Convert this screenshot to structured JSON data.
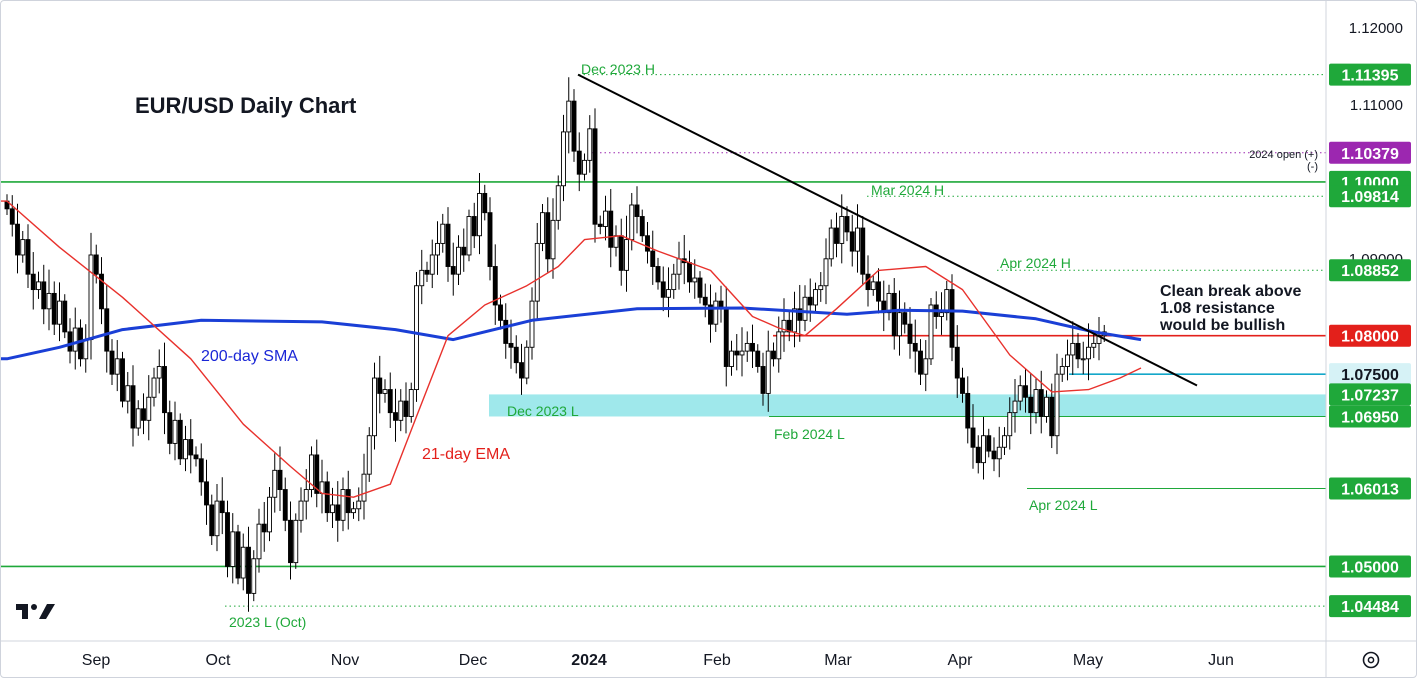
{
  "chart_data": {
    "type": "candlestick",
    "title": "EUR/USD Daily Chart",
    "ylim": [
      1.042,
      1.123
    ],
    "y_ticks": [
      "1.12000",
      "1.11000",
      "1.09000"
    ],
    "x_ticks": [
      "Sep",
      "Oct",
      "Nov",
      "Dec",
      "2024",
      "Feb",
      "Mar",
      "Apr",
      "May",
      "Jun"
    ],
    "colors": {
      "up": "#ffffff",
      "down": "#000000",
      "sma": "#1a3fd6",
      "ema": "#e8312c",
      "level_green": "#1fa83a",
      "level_red": "#e3201b",
      "level_cyan": "#14a7c9",
      "zone": "#7fe0e4",
      "purple": "#9c27b0"
    },
    "candles": {
      "start_open": 1.0975,
      "closes": [
        1.0965,
        1.0945,
        1.0905,
        1.0925,
        1.088,
        1.086,
        1.087,
        1.0835,
        1.0855,
        1.0815,
        1.0845,
        1.0805,
        1.078,
        1.081,
        1.077,
        1.0795,
        1.0905,
        1.088,
        1.0835,
        1.078,
        1.075,
        1.077,
        1.0715,
        1.0735,
        1.068,
        1.0705,
        1.069,
        1.072,
        1.0745,
        1.076,
        1.07,
        1.066,
        1.069,
        1.064,
        1.0665,
        1.0645,
        1.064,
        1.061,
        1.058,
        1.054,
        1.0585,
        1.057,
        1.05,
        1.0545,
        1.0485,
        1.0525,
        1.0465,
        1.051,
        1.0555,
        1.0545,
        1.059,
        1.0625,
        1.06,
        1.056,
        1.0505,
        1.056,
        1.0585,
        1.06,
        1.0645,
        1.0595,
        1.061,
        1.057,
        1.058,
        1.056,
        1.06,
        1.057,
        1.0575,
        1.0585,
        1.062,
        1.067,
        1.0745,
        1.0725,
        1.073,
        1.07,
        1.069,
        1.0715,
        1.0695,
        1.073,
        1.0865,
        1.0885,
        1.088,
        1.0905,
        1.092,
        1.0945,
        1.089,
        1.088,
        1.0915,
        1.0905,
        1.0955,
        1.093,
        1.0985,
        1.096,
        1.089,
        1.084,
        1.082,
        1.079,
        1.0785,
        1.0765,
        1.0745,
        1.0785,
        1.0845,
        1.092,
        1.096,
        1.09,
        1.095,
        1.0995,
        1.1065,
        1.1105,
        1.104,
        1.101,
        1.1028,
        1.1069,
        1.0945,
        1.0942,
        1.0962,
        1.0915,
        1.093,
        1.0885,
        1.0925,
        1.097,
        1.0955,
        1.093,
        1.091,
        1.089,
        1.087,
        1.085,
        1.086,
        1.088,
        1.09,
        1.0895,
        1.087,
        1.0875,
        1.085,
        1.084,
        1.0815,
        1.0845,
        1.0835,
        1.076,
        1.078,
        1.0775,
        1.078,
        1.079,
        1.078,
        1.076,
        1.0725,
        1.078,
        1.077,
        1.0805,
        1.082,
        1.0805,
        1.0835,
        1.082,
        1.085,
        1.084,
        1.086,
        1.0865,
        1.09,
        1.094,
        1.092,
        1.0955,
        1.0935,
        1.091,
        1.094,
        1.088,
        1.086,
        1.087,
        1.0845,
        1.083,
        1.0855,
        1.08,
        1.083,
        1.0815,
        1.079,
        1.078,
        1.075,
        1.077,
        1.084,
        1.0825,
        1.083,
        1.086,
        1.0785,
        1.0745,
        1.0725,
        1.068,
        1.0655,
        1.0635,
        1.067,
        1.065,
        1.064,
        1.0655,
        1.067,
        1.07,
        1.0715,
        1.0735,
        1.072,
        1.07,
        1.073,
        1.0695,
        1.072,
        1.067,
        1.075,
        1.076,
        1.0775,
        1.079,
        1.077,
        1.077,
        1.0785,
        1.079,
        1.08,
        1.0805
      ]
    },
    "series": [
      {
        "name": "200-day SMA",
        "points": [
          [
            0,
            1.077
          ],
          [
            10,
            1.0785
          ],
          [
            22,
            1.0808
          ],
          [
            37,
            1.082
          ],
          [
            60,
            1.0818
          ],
          [
            74,
            1.0808
          ],
          [
            85,
            1.0795
          ],
          [
            100,
            1.082
          ],
          [
            120,
            1.0835
          ],
          [
            140,
            1.0836
          ],
          [
            160,
            1.0828
          ],
          [
            170,
            1.0833
          ],
          [
            182,
            1.0832
          ],
          [
            196,
            1.0822
          ],
          [
            207,
            1.0805
          ],
          [
            216,
            1.0795
          ]
        ]
      },
      {
        "name": "21-day EMA",
        "points": [
          [
            0,
            1.0975
          ],
          [
            10,
            1.0915
          ],
          [
            22,
            1.085
          ],
          [
            35,
            1.077
          ],
          [
            45,
            1.0685
          ],
          [
            54,
            1.063
          ],
          [
            60,
            1.0595
          ],
          [
            66,
            1.059
          ],
          [
            73,
            1.0607
          ],
          [
            78,
            1.0695
          ],
          [
            84,
            1.08
          ],
          [
            91,
            1.084
          ],
          [
            99,
            1.0865
          ],
          [
            105,
            1.089
          ],
          [
            110,
            1.0925
          ],
          [
            117,
            1.093
          ],
          [
            124,
            1.091
          ],
          [
            134,
            1.0885
          ],
          [
            142,
            1.0825
          ],
          [
            147,
            1.081
          ],
          [
            152,
            1.08
          ],
          [
            158,
            1.0835
          ],
          [
            166,
            1.0885
          ],
          [
            175,
            1.089
          ],
          [
            182,
            1.086
          ],
          [
            191,
            1.0775
          ],
          [
            199,
            1.0727
          ],
          [
            206,
            1.073
          ],
          [
            212,
            1.0745
          ],
          [
            216,
            1.0758
          ]
        ]
      }
    ],
    "annotations": {
      "dec_2023_h": "Dec 2023 H",
      "mar_2024_h": "Mar 2024 H",
      "apr_2024_h": "Apr 2024 H",
      "dec_2023_l": "Dec 2023 L",
      "feb_2024_l": "Feb 2024 L",
      "apr_2024_l": "Apr 2024 L",
      "l_2023_oct": "2023 L (Oct)",
      "sma_label": "200-day SMA",
      "ema_label": "21-day EMA",
      "note_lines": [
        "Clean break above",
        "1.08 resistance",
        "would be bullish"
      ],
      "open_2024": "2024 open (+)",
      "open_2024_minus": "(-)"
    },
    "levels": [
      {
        "value": 1.11395,
        "label": "1.11395",
        "style": "dotted",
        "color": "#1fa83a",
        "badge": "#1fa83a"
      },
      {
        "value": 1.10379,
        "label": "1.10379",
        "style": "dotted",
        "color": "#9c27b0",
        "badge": "#9c27b0"
      },
      {
        "value": 1.1,
        "label": "1.10000",
        "style": "solid",
        "color": "#1fa83a",
        "badge": "#1fa83a"
      },
      {
        "value": 1.09814,
        "label": "1.09814",
        "style": "dotted",
        "color": "#1fa83a",
        "badge": "#1fa83a"
      },
      {
        "value": 1.08852,
        "label": "1.08852",
        "style": "dotted",
        "color": "#1fa83a",
        "badge": "#1fa83a"
      },
      {
        "value": 1.08,
        "label": "1.08000",
        "style": "solid",
        "color": "#e3201b",
        "badge": "#e3201b"
      },
      {
        "value": 1.075,
        "label": "1.07500",
        "style": "solid",
        "color": "#14a7c9",
        "badge": "#d6f2f6"
      },
      {
        "value": 1.07237,
        "label": "1.07237",
        "style": "zone-top",
        "color": "#1fa83a",
        "badge": "#1fa83a"
      },
      {
        "value": 1.0695,
        "label": "1.06950",
        "style": "solid",
        "color": "#1fa83a",
        "badge": "#1fa83a"
      },
      {
        "value": 1.06013,
        "label": "1.06013",
        "style": "solid",
        "color": "#1fa83a",
        "badge": "#1fa83a"
      },
      {
        "value": 1.05,
        "label": "1.05000",
        "style": "solid",
        "color": "#1fa83a",
        "badge": "#1fa83a"
      },
      {
        "value": 1.04484,
        "label": "1.04484",
        "style": "dotted",
        "color": "#1fa83a",
        "badge": "#1fa83a"
      }
    ],
    "trendline": {
      "from": [
        107,
        1.11395
      ],
      "to": [
        217,
        1.0773
      ]
    }
  }
}
